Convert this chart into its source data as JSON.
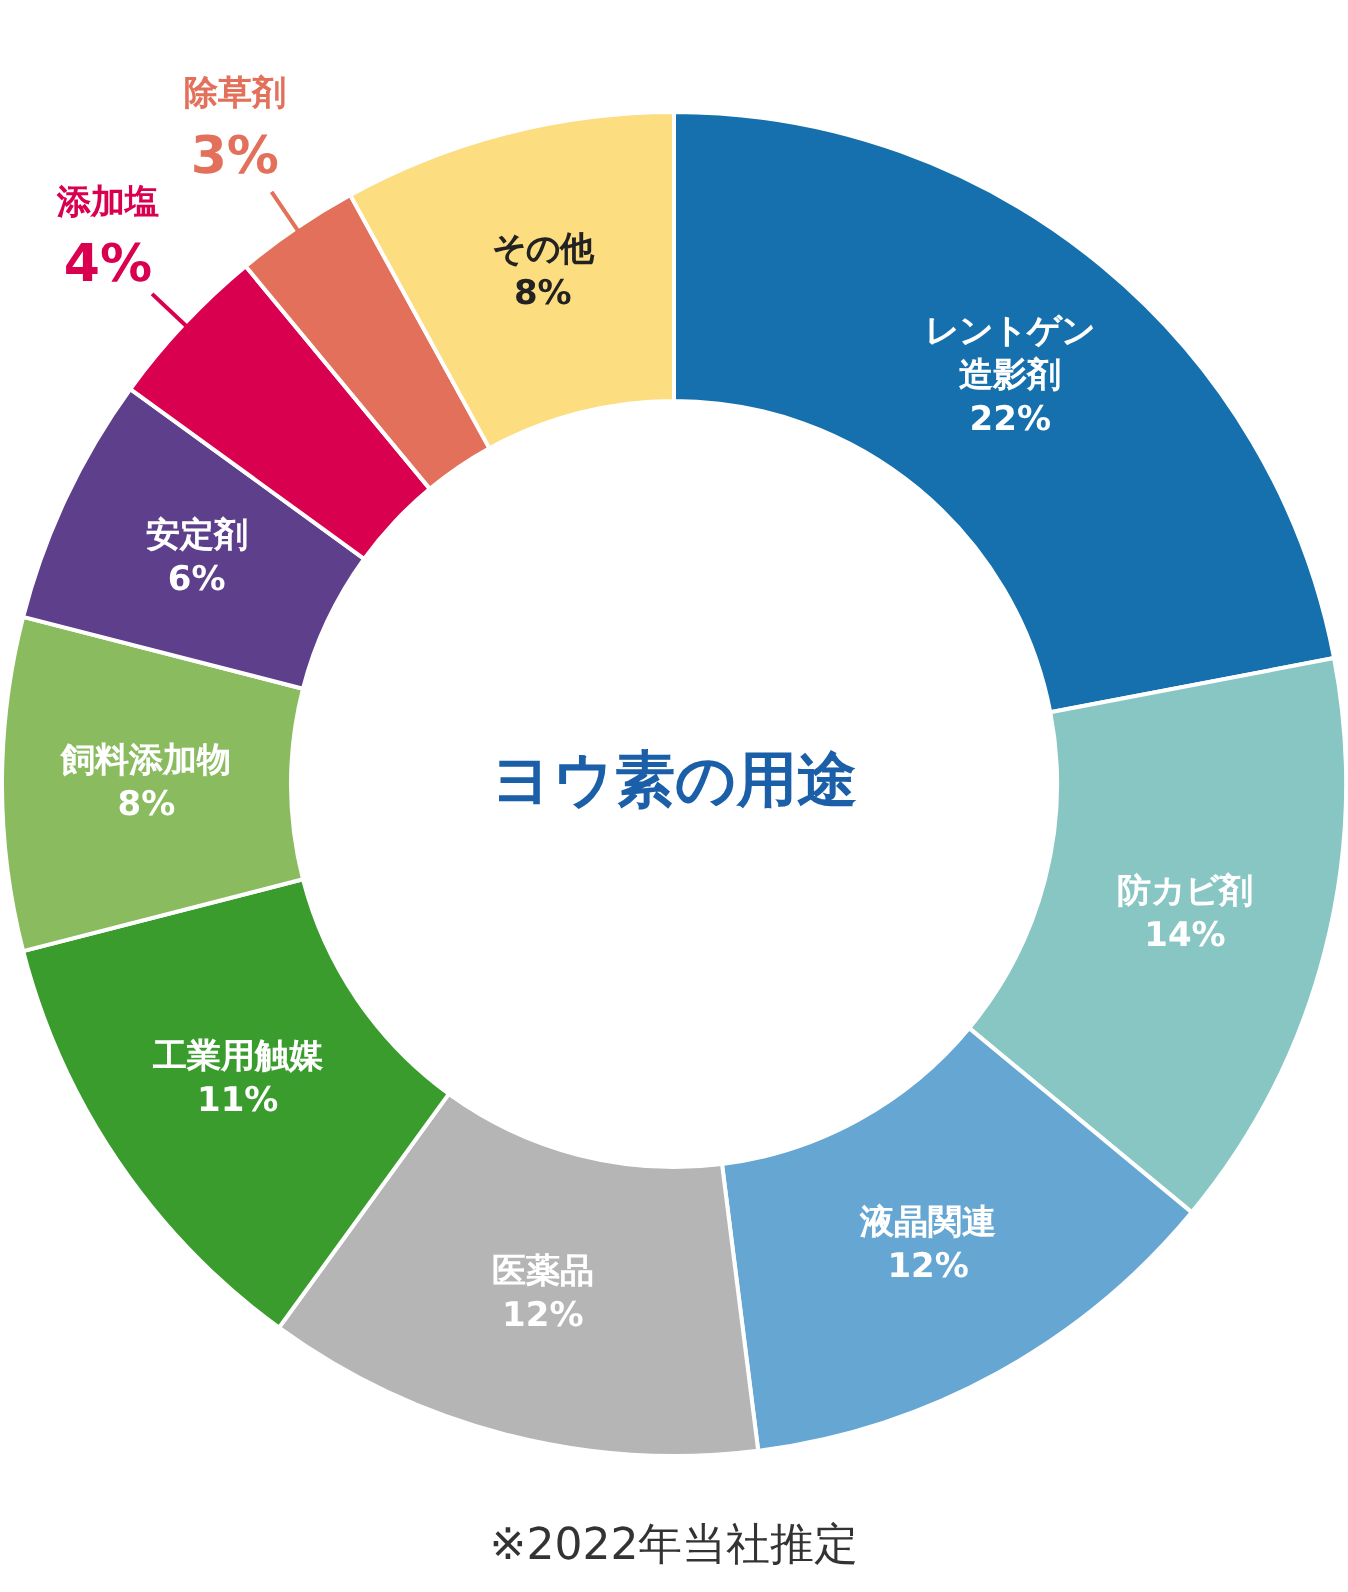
{
  "chart_data": {
    "type": "donut",
    "title": "ヨウ素の用途",
    "categories": [
      "レントゲン造影剤",
      "防カビ剤",
      "液晶関連",
      "医薬品",
      "工業用触媒",
      "飼料添加物",
      "安定剤",
      "添加塩",
      "除草剤",
      "その他"
    ],
    "values": [
      22,
      14,
      12,
      12,
      11,
      8,
      6,
      4,
      3,
      8
    ],
    "colors": [
      "#1570ad",
      "#88c6c3",
      "#66a6d3",
      "#b5b5b5",
      "#3a9c2d",
      "#8abb5e",
      "#5e3f8b",
      "#d9004f",
      "#e2705a",
      "#fcdd80"
    ],
    "value_labels": [
      "22%",
      "14%",
      "12%",
      "12%",
      "11%",
      "8%",
      "6%",
      "4%",
      "3%",
      "8%"
    ],
    "legend": false,
    "annotations": [
      "※2022年当社推定"
    ]
  }
}
